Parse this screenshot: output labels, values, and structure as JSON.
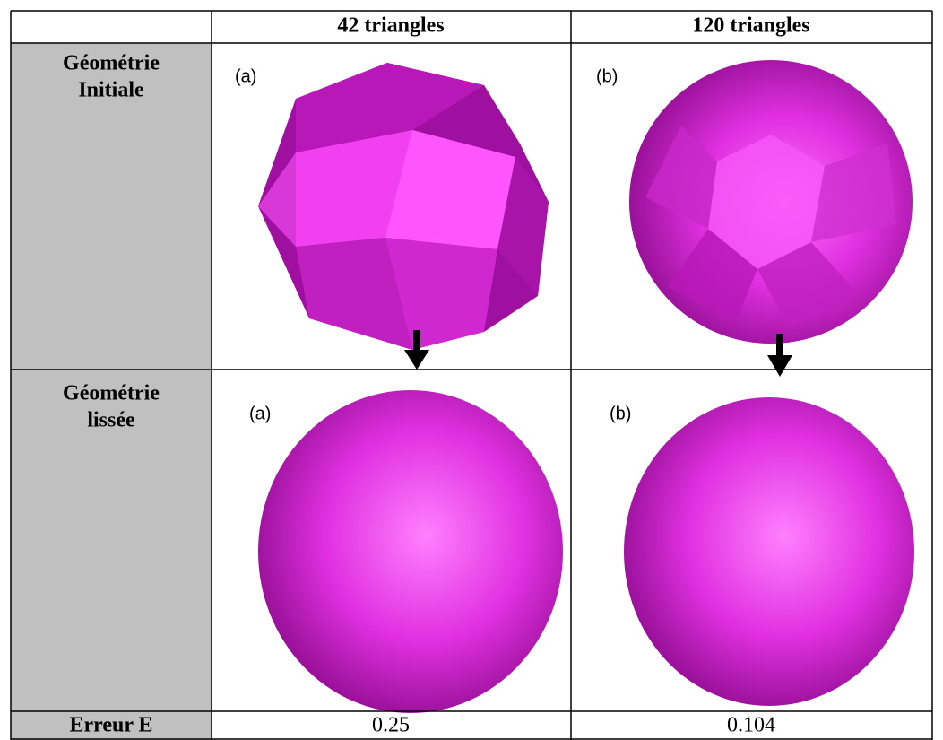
{
  "table": {
    "header": [
      "42 triangles",
      "120 triangles"
    ],
    "rows": [
      {
        "label_lines": [
          "Géométrie",
          "Initiale"
        ],
        "cells": [
          "(a)",
          "(b)"
        ]
      },
      {
        "label_lines": [
          "Géométrie",
          "lissée"
        ],
        "cells": [
          "(a)",
          "(b)"
        ]
      },
      {
        "label_lines": [
          "Erreur E"
        ],
        "cells": [
          0.25,
          0.104
        ]
      }
    ]
  }
}
